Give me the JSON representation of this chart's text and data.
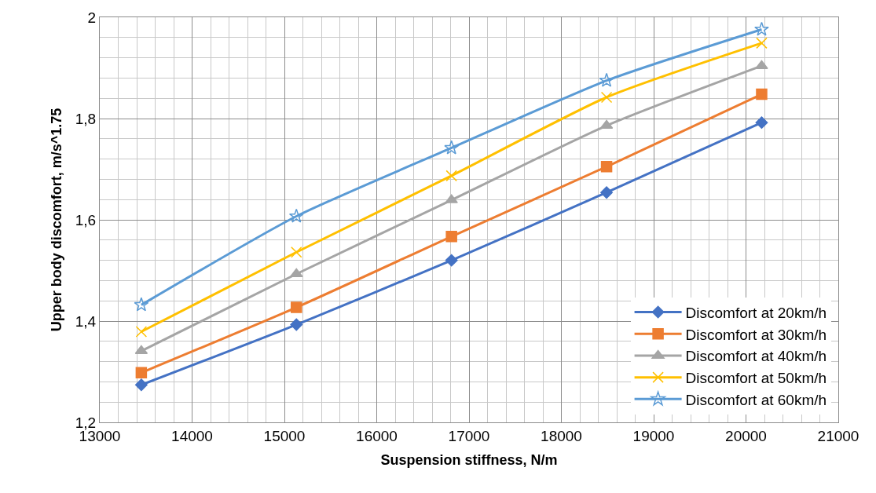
{
  "chart_data": {
    "type": "line",
    "xlabel": "Suspension stiffness, N/m",
    "ylabel": "Upper body discomfort, m/s^1.75",
    "x": [
      13450,
      15130,
      16810,
      18490,
      20170
    ],
    "series": [
      {
        "name": "Discomfort at 20km/h",
        "color": "#4472c4",
        "marker": "diamond",
        "values": [
          1.274,
          1.393,
          1.52,
          1.654,
          1.792
        ]
      },
      {
        "name": "Discomfort at 30km/h",
        "color": "#ed7d31",
        "marker": "square",
        "values": [
          1.298,
          1.427,
          1.567,
          1.705,
          1.848
        ]
      },
      {
        "name": "Discomfort at 40km/h",
        "color": "#a5a5a5",
        "marker": "triangle",
        "values": [
          1.341,
          1.493,
          1.639,
          1.786,
          1.904
        ]
      },
      {
        "name": "Discomfort at 50km/h",
        "color": "#ffc000",
        "marker": "cross",
        "values": [
          1.379,
          1.536,
          1.687,
          1.842,
          1.949
        ]
      },
      {
        "name": "Discomfort at 60km/h",
        "color": "#5b9bd5",
        "marker": "star",
        "values": [
          1.432,
          1.607,
          1.742,
          1.875,
          1.976
        ]
      }
    ],
    "xlim": [
      13000,
      21000
    ],
    "xticks": [
      13000,
      14000,
      15000,
      16000,
      17000,
      18000,
      19000,
      20000,
      21000
    ],
    "ylim": [
      1.2,
      2
    ],
    "yticks": [
      {
        "value": 1.2,
        "label": "1,2"
      },
      {
        "value": 1.4,
        "label": "1,4"
      },
      {
        "value": 1.6,
        "label": "1,6"
      },
      {
        "value": 1.8,
        "label": "1,8"
      },
      2
    ],
    "grid": true,
    "legend": "bottom right",
    "line_style": "solid"
  }
}
